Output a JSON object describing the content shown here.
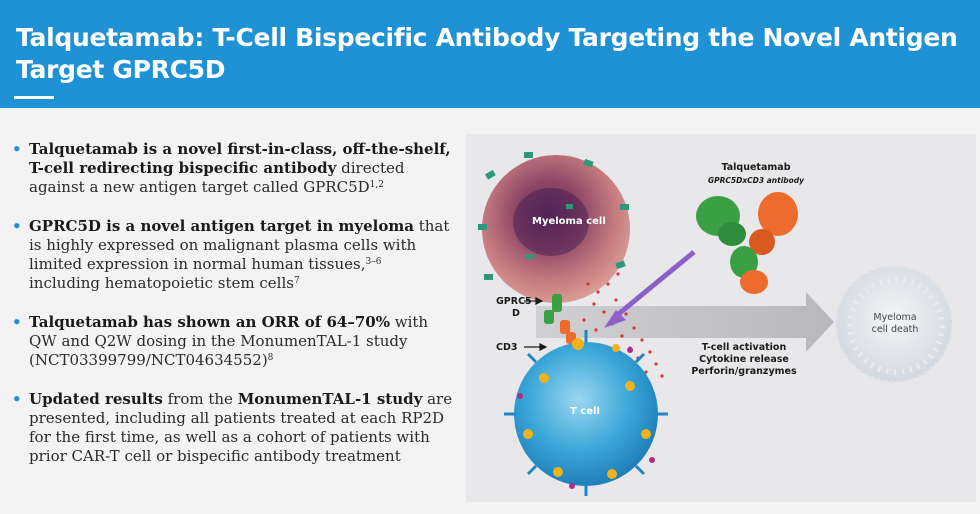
{
  "header": {
    "title": "Talquetamab: T-Cell Bispecific Antibody Targeting the Novel Antigen Target GPRC5D"
  },
  "bullet_marker": "•",
  "bullets": [
    {
      "bold": "Talquetamab is a novel first-in-class, off-the-shelf, T-cell redirecting bispecific antibody",
      "text": " directed against a new antigen target called GPRC5D",
      "sup": "1,2",
      "text2": ""
    },
    {
      "bold": "GPRC5D is a novel antigen target in myeloma",
      "text": " that is highly expressed on malignant plasma cells with limited expression in normal human tissues,",
      "sup": "3–6",
      "text2": " including hematopoietic stem cells",
      "sup2": "7"
    },
    {
      "bold": "Talquetamab has shown an ORR of 64–70%",
      "text": " with QW and Q2W dosing in the MonumenTAL-1 study (NCT03399799/NCT04634552)",
      "sup": "8",
      "text2": ""
    },
    {
      "bold": "Updated results",
      "text": " from the ",
      "bold2": "MonumenTAL-1 study",
      "text2": " are presented, including all patients treated at each RP2D for the first time, as well as a cohort of patients with prior CAR-T cell or bispecific antibody treatment"
    }
  ],
  "figure": {
    "myeloma_cell": "Myeloma cell",
    "antibody_name": "Talquetamab",
    "antibody_sub": "GPRC5DxCD3 antibody",
    "gprc5d_label_1": "GPRC5",
    "gprc5d_label_2": "D",
    "cd3_label": "CD3",
    "t_cell": "T cell",
    "effects": [
      "T-cell activation",
      "Cytokine release",
      "Perforin/granzymes"
    ],
    "death_1": "Myeloma",
    "death_2": "cell death"
  },
  "colors": {
    "header_bg": "#1f92d6",
    "bullet": "#1f92d6",
    "myeloma": "#a85563",
    "t_cell": "#2ea9d6",
    "antibody_green": "#3aa043",
    "antibody_orange": "#ec6b2d",
    "arrow_purple": "#8e5fc8"
  }
}
